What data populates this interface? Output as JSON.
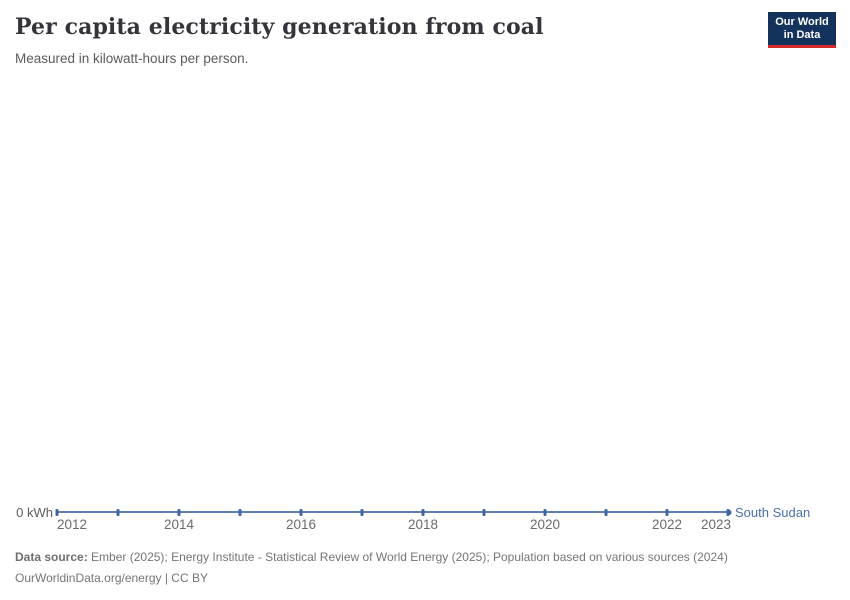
{
  "header": {
    "title": "Per capita electricity generation from coal",
    "subtitle": "Measured in kilowatt-hours per person.",
    "logo": {
      "line1": "Our World",
      "line2": "in Data",
      "bg_color": "#14335c",
      "accent_color": "#d42b2f",
      "text_color": "#ffffff"
    }
  },
  "chart_data": {
    "type": "line",
    "title": "Per capita electricity generation from coal",
    "ylabel": "kilowatt-hours per person",
    "x": [
      2012,
      2013,
      2014,
      2015,
      2016,
      2017,
      2018,
      2019,
      2020,
      2021,
      2022,
      2023
    ],
    "series": [
      {
        "name": "South Sudan",
        "color": "#4a70ae",
        "values": [
          0,
          0,
          0,
          0,
          0,
          0,
          0,
          0,
          0,
          0,
          0,
          0
        ]
      }
    ],
    "x_tick_labels": [
      "2012",
      "2014",
      "2016",
      "2018",
      "2020",
      "2022",
      "2023"
    ],
    "y_tick_labels": [
      "0 kWh"
    ],
    "ylim": [
      0,
      0
    ],
    "grid": false,
    "legend_position": "end-of-line",
    "line_color": "#5f7db6",
    "marker_color": "#3f66a4"
  },
  "footer": {
    "data_source_label": "Data source:",
    "data_source_text": "Ember (2025); Energy Institute - Statistical Review of World Energy (2025); Population based on various sources (2024)",
    "citation": "OurWorldinData.org/energy | CC BY"
  }
}
